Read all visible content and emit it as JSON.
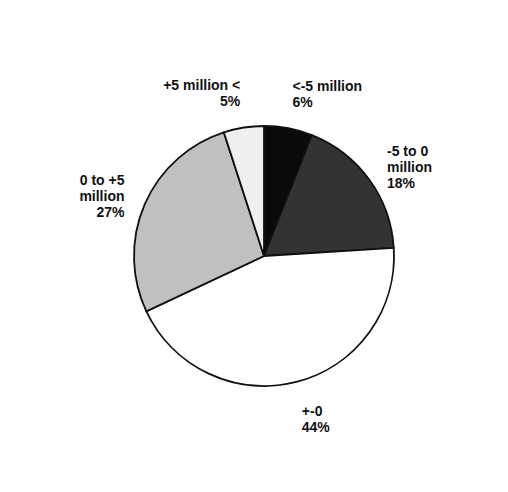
{
  "chart_data": {
    "type": "pie",
    "categories": [
      "<-5 million",
      "-5 to 0\nmillion",
      "+-0",
      "0 to +5\nmillion",
      "+5 million <"
    ],
    "values": [
      6,
      18,
      44,
      27,
      5
    ],
    "value_labels": [
      "6%",
      "18%",
      "44%",
      "27%",
      "5%"
    ],
    "colors": [
      "#0a0a0a",
      "#333333",
      "#ffffff",
      "#c0c0c0",
      "#f0f0f0"
    ],
    "data_labels": true
  }
}
